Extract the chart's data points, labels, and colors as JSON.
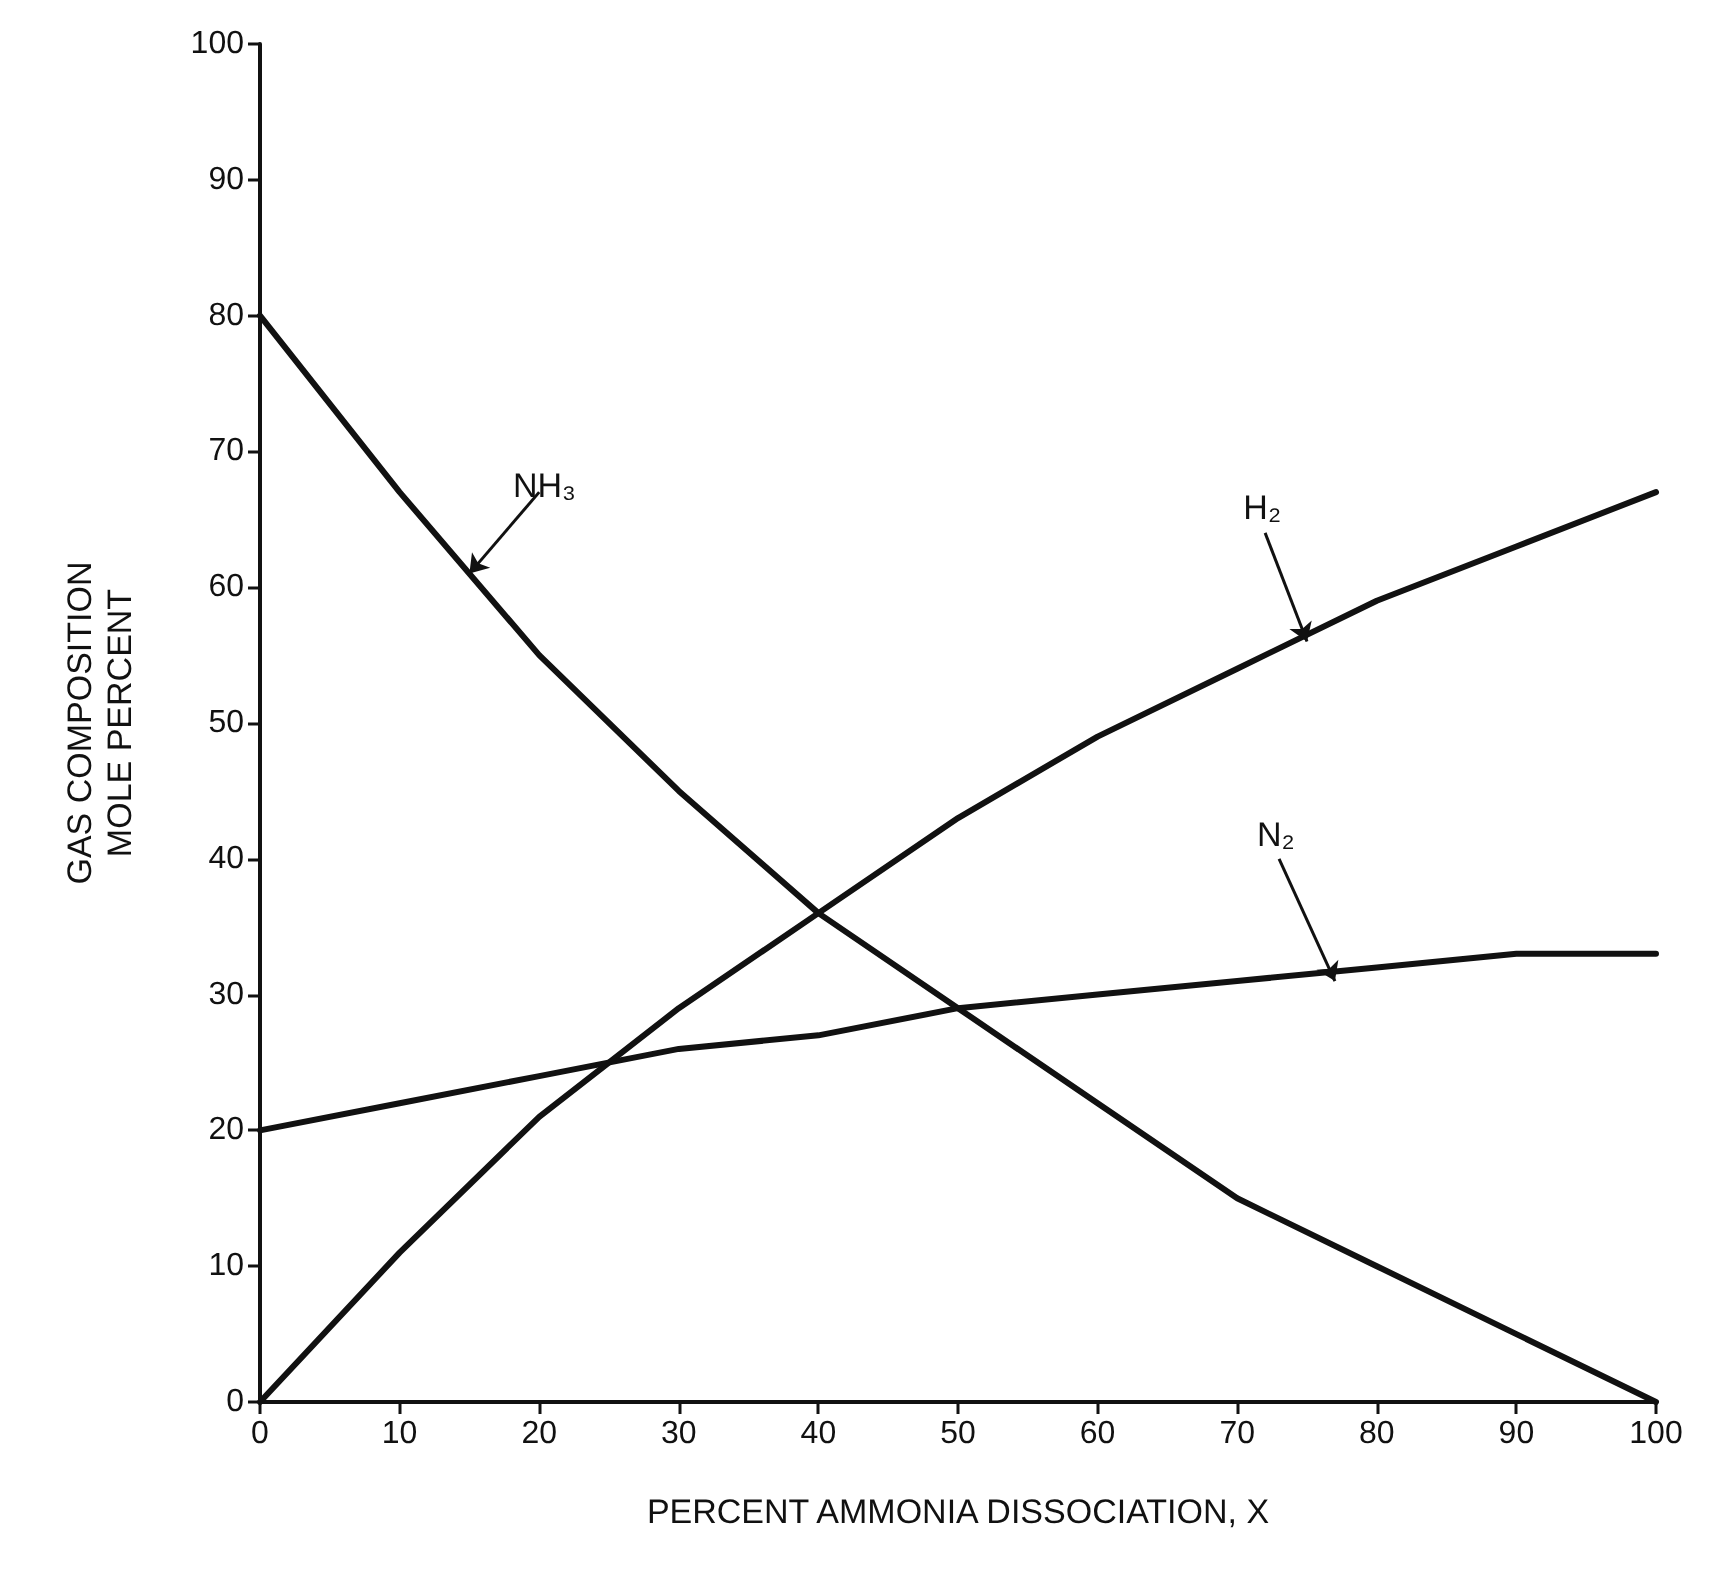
{
  "chart_data": {
    "type": "line",
    "xlabel": "PERCENT AMMONIA DISSOCIATION, X",
    "ylabel": "GAS COMPOSITION\nMOLE PERCENT",
    "x": [
      0,
      10,
      20,
      30,
      40,
      50,
      60,
      70,
      80,
      90,
      100
    ],
    "series": [
      {
        "color": "#111111",
        "values": [
          80,
          67,
          55,
          45,
          36,
          29,
          22,
          15,
          10,
          5,
          0
        ]
      },
      {
        "color": "#111111",
        "values": [
          0,
          11,
          21,
          29,
          36,
          43,
          49,
          54,
          59,
          63,
          67
        ]
      },
      {
        "color": "#111111",
        "values": [
          20,
          22,
          24,
          26,
          27,
          29,
          30,
          31,
          32,
          33,
          33
        ]
      }
    ],
    "annotations": [
      {
        "text": "NH₃",
        "x": 15,
        "y": 61
      },
      {
        "text": "H₂",
        "x": 75,
        "y": 56
      },
      {
        "text": "N₂",
        "x": 77,
        "y": 31
      }
    ],
    "xlim": [
      0,
      100
    ],
    "ylim": [
      0,
      100
    ],
    "xticks": [
      0,
      10,
      20,
      30,
      40,
      50,
      60,
      70,
      80,
      90,
      100
    ],
    "yticks": [
      0,
      10,
      20,
      30,
      40,
      50,
      60,
      70,
      80,
      90,
      100
    ],
    "grid": false,
    "marker": "none",
    "line_style": "solid"
  }
}
